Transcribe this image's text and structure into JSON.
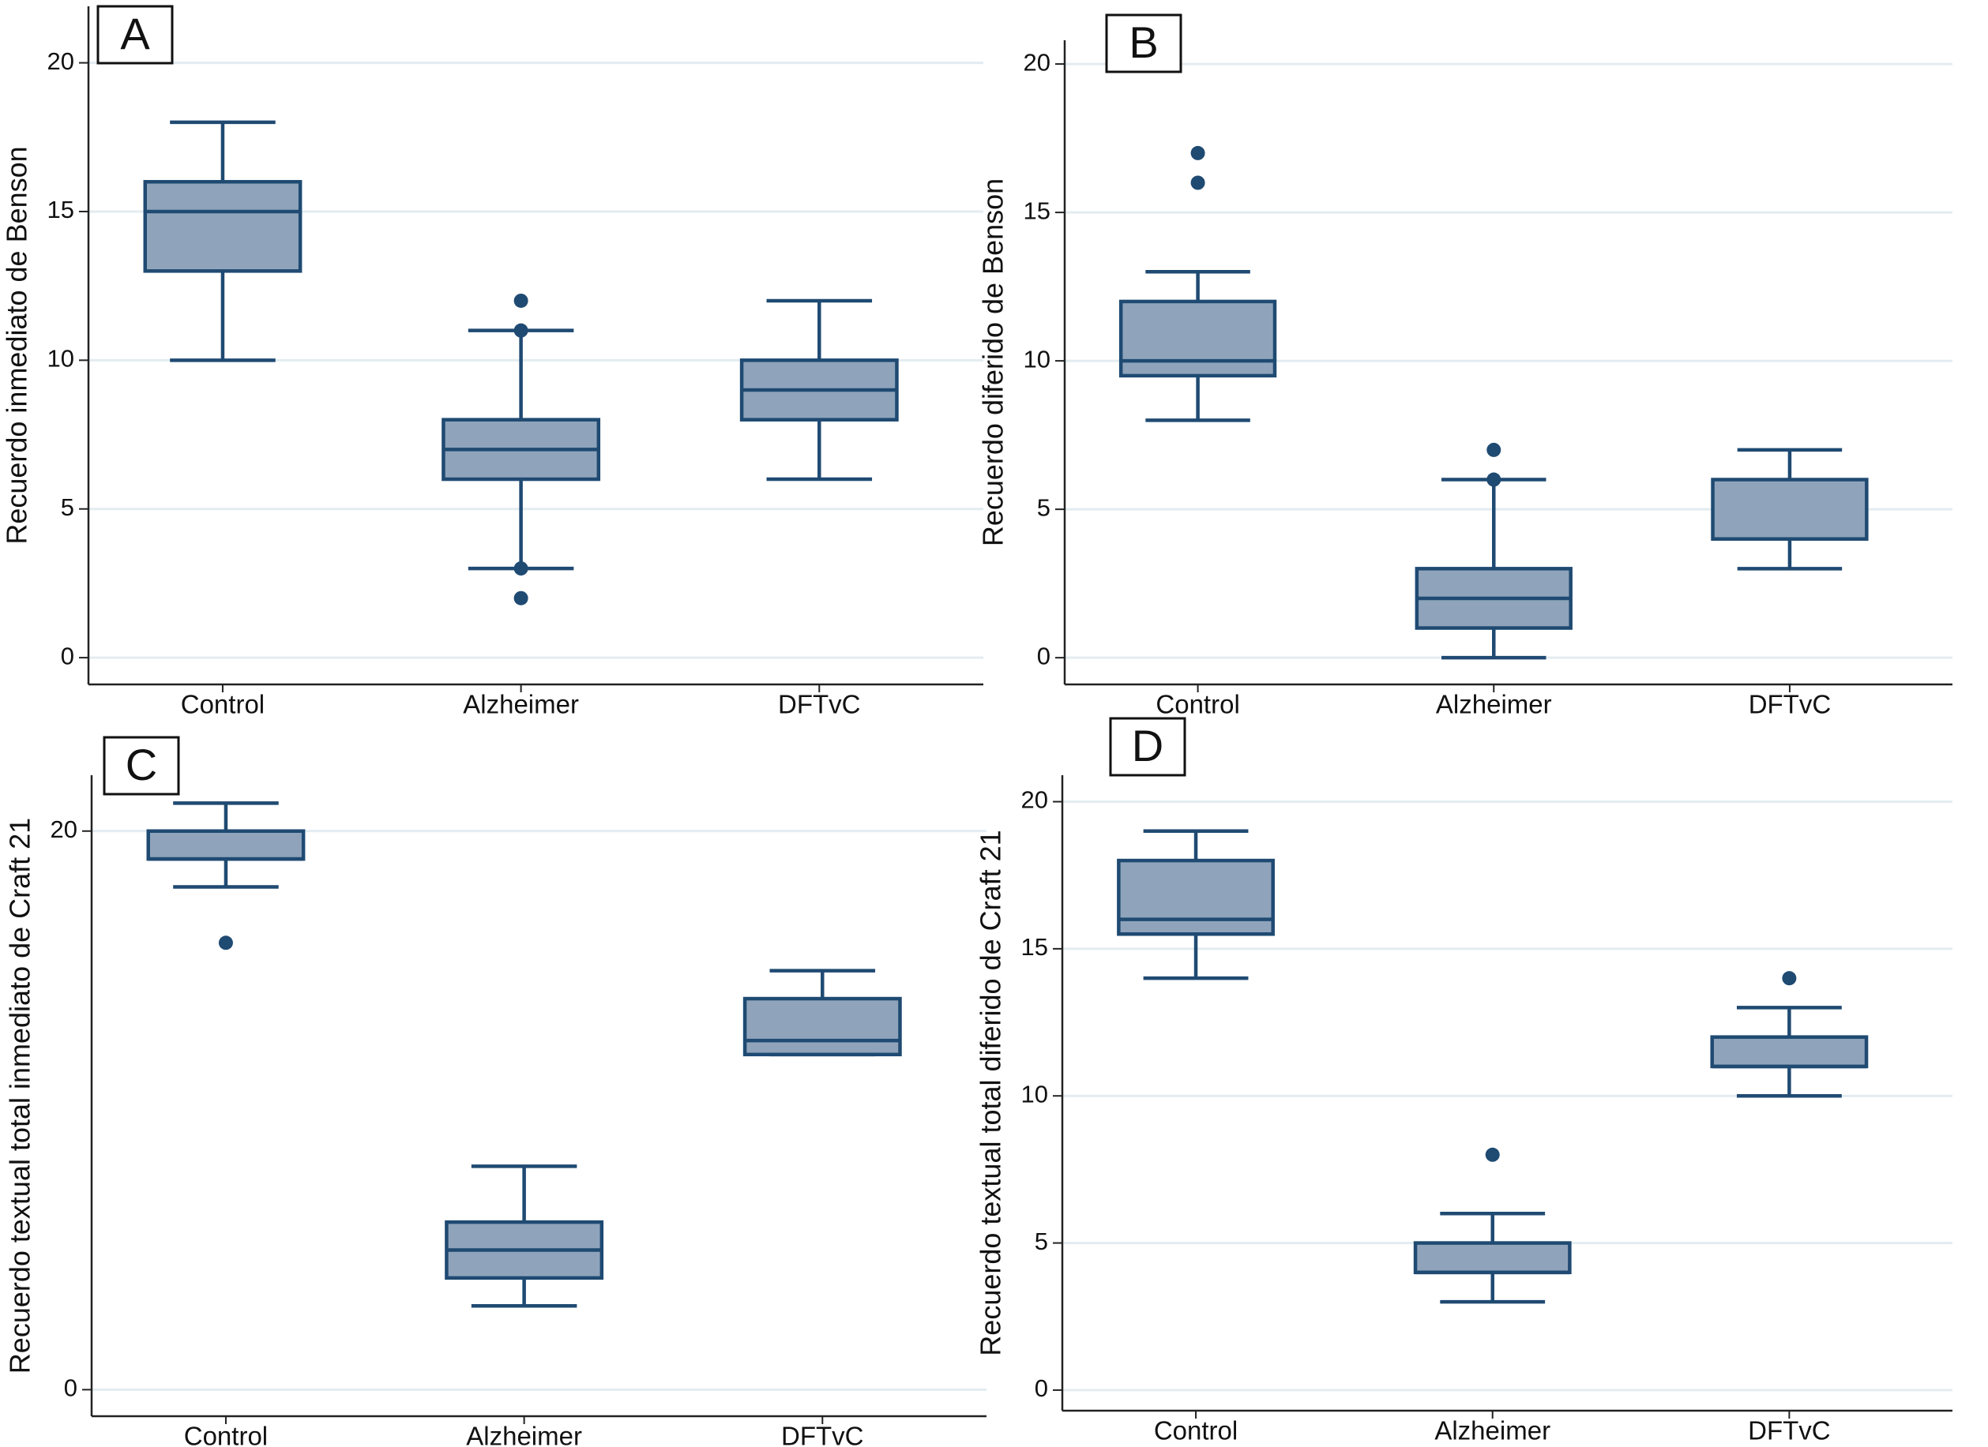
{
  "chart_data": [
    {
      "type": "box",
      "panel_label": "A",
      "y_label": "Recuerdo inmediato de Benson",
      "categories": [
        "Control",
        "Alzheimer",
        "DFTvC"
      ],
      "boxes": [
        {
          "whisker_low": 10,
          "q1": 13,
          "median": 15,
          "q3": 16,
          "whisker_high": 18,
          "outliers": []
        },
        {
          "whisker_low": 3,
          "q1": 6,
          "median": 7,
          "q3": 8,
          "whisker_high": 11,
          "outliers": [
            12,
            11,
            3,
            2
          ]
        },
        {
          "whisker_low": 6,
          "q1": 8,
          "median": 9,
          "q3": 10,
          "whisker_high": 12,
          "outliers": []
        }
      ],
      "ylim": [
        -0.9,
        21.9
      ],
      "yticks": [
        0,
        5,
        10,
        15,
        20
      ],
      "grid": true,
      "color": "#8fa4bb",
      "edge_color": "#1f4a72"
    },
    {
      "type": "box",
      "panel_label": "B",
      "y_label": "Recuerdo diferido de Benson",
      "categories": [
        "Control",
        "Alzheimer",
        "DFTvC"
      ],
      "boxes": [
        {
          "whisker_low": 8,
          "q1": 9.5,
          "median": 10,
          "q3": 12,
          "whisker_high": 13,
          "outliers": [
            16,
            17
          ]
        },
        {
          "whisker_low": 0,
          "q1": 1,
          "median": 2,
          "q3": 3,
          "whisker_high": 6,
          "outliers": [
            6,
            7
          ]
        },
        {
          "whisker_low": 3,
          "q1": 4,
          "median": 4,
          "q3": 6,
          "whisker_high": 7,
          "outliers": []
        }
      ],
      "ylim": [
        -0.9,
        20.8
      ],
      "yticks": [
        0,
        5,
        10,
        15,
        20
      ],
      "grid": true,
      "color": "#8fa4bb",
      "edge_color": "#1f4a72"
    },
    {
      "type": "box",
      "panel_label": "C",
      "y_label": "Recuerdo textual total inmediato de Craft 21",
      "categories": [
        "Control",
        "Alzheimer",
        "DFTvC"
      ],
      "boxes": [
        {
          "whisker_low": 18,
          "q1": 19,
          "median": 19,
          "q3": 20,
          "whisker_high": 21,
          "outliers": [
            16
          ]
        },
        {
          "whisker_low": 3,
          "q1": 4,
          "median": 5,
          "q3": 6,
          "whisker_high": 8,
          "outliers": []
        },
        {
          "whisker_low": 12,
          "q1": 12,
          "median": 12.5,
          "q3": 14,
          "whisker_high": 15,
          "outliers": []
        }
      ],
      "ylim": [
        -0.95,
        22
      ],
      "yticks": [
        0,
        20
      ],
      "grid": true,
      "color": "#8fa4bb",
      "edge_color": "#1f4a72"
    },
    {
      "type": "box",
      "panel_label": "D",
      "y_label": "Recuerdo textual total diferido de Craft 21",
      "categories": [
        "Control",
        "Alzheimer",
        "DFTvC"
      ],
      "boxes": [
        {
          "whisker_low": 14,
          "q1": 15.5,
          "median": 16,
          "q3": 18,
          "whisker_high": 19,
          "outliers": []
        },
        {
          "whisker_low": 3,
          "q1": 4,
          "median": 4,
          "q3": 5,
          "whisker_high": 6,
          "outliers": [
            8
          ]
        },
        {
          "whisker_low": 10,
          "q1": 11,
          "median": 11,
          "q3": 12,
          "whisker_high": 13,
          "outliers": [
            14
          ]
        }
      ],
      "ylim": [
        -0.7,
        20.9
      ],
      "yticks": [
        0,
        5,
        10,
        15,
        20
      ],
      "grid": true,
      "color": "#8fa4bb",
      "edge_color": "#1f4a72"
    }
  ]
}
